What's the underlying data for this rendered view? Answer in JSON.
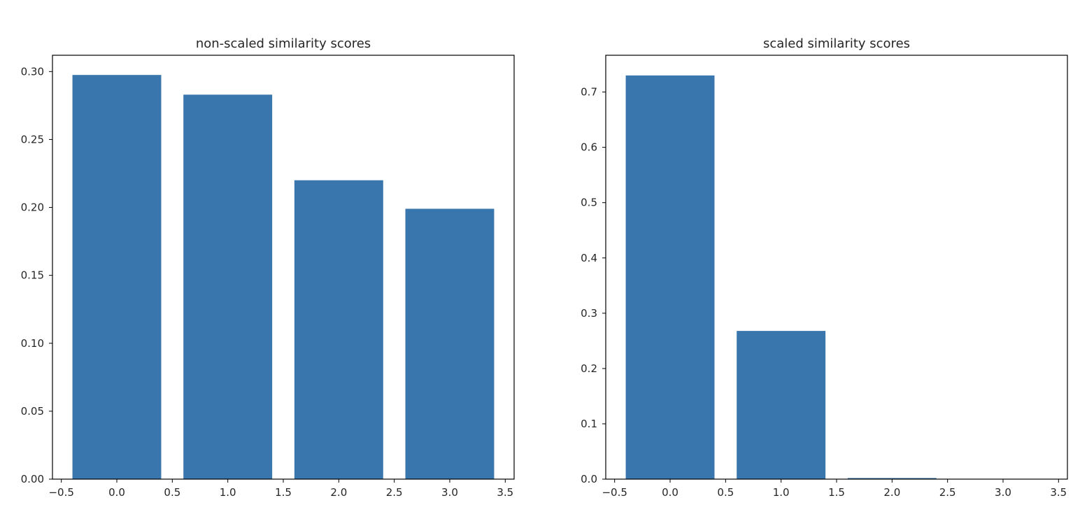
{
  "chart_data": [
    {
      "type": "bar",
      "title": "non-scaled similarity scores",
      "xlabel": "",
      "ylabel": "",
      "x": [
        0,
        1,
        2,
        3
      ],
      "values": [
        0.2975,
        0.283,
        0.22,
        0.199
      ],
      "bar_width": 0.8,
      "xlim": [
        -0.58,
        3.58
      ],
      "ylim": [
        0,
        0.312
      ],
      "xticks": [
        -0.5,
        0.0,
        0.5,
        1.0,
        1.5,
        2.0,
        2.5,
        3.0,
        3.5
      ],
      "xtick_labels": [
        "−0.5",
        "0.0",
        "0.5",
        "1.0",
        "1.5",
        "2.0",
        "2.5",
        "3.0",
        "3.5"
      ],
      "yticks": [
        0.0,
        0.05,
        0.1,
        0.15,
        0.2,
        0.25,
        0.3
      ],
      "ytick_labels": [
        "0.00",
        "0.05",
        "0.10",
        "0.15",
        "0.20",
        "0.25",
        "0.30"
      ],
      "grid": false,
      "color": "#3a76ae"
    },
    {
      "type": "bar",
      "title": "scaled similarity scores",
      "xlabel": "",
      "ylabel": "",
      "x": [
        0,
        1,
        2,
        3
      ],
      "values": [
        0.73,
        0.268,
        0.002,
        0.0
      ],
      "bar_width": 0.8,
      "xlim": [
        -0.58,
        3.58
      ],
      "ylim": [
        0,
        0.7665
      ],
      "xticks": [
        -0.5,
        0.0,
        0.5,
        1.0,
        1.5,
        2.0,
        2.5,
        3.0,
        3.5
      ],
      "xtick_labels": [
        "−0.5",
        "0.0",
        "0.5",
        "1.0",
        "1.5",
        "2.0",
        "2.5",
        "3.0",
        "3.5"
      ],
      "yticks": [
        0.0,
        0.1,
        0.2,
        0.3,
        0.4,
        0.5,
        0.6,
        0.7
      ],
      "ytick_labels": [
        "0.0",
        "0.1",
        "0.2",
        "0.3",
        "0.4",
        "0.5",
        "0.6",
        "0.7"
      ],
      "grid": false,
      "color": "#3a76ae"
    }
  ]
}
